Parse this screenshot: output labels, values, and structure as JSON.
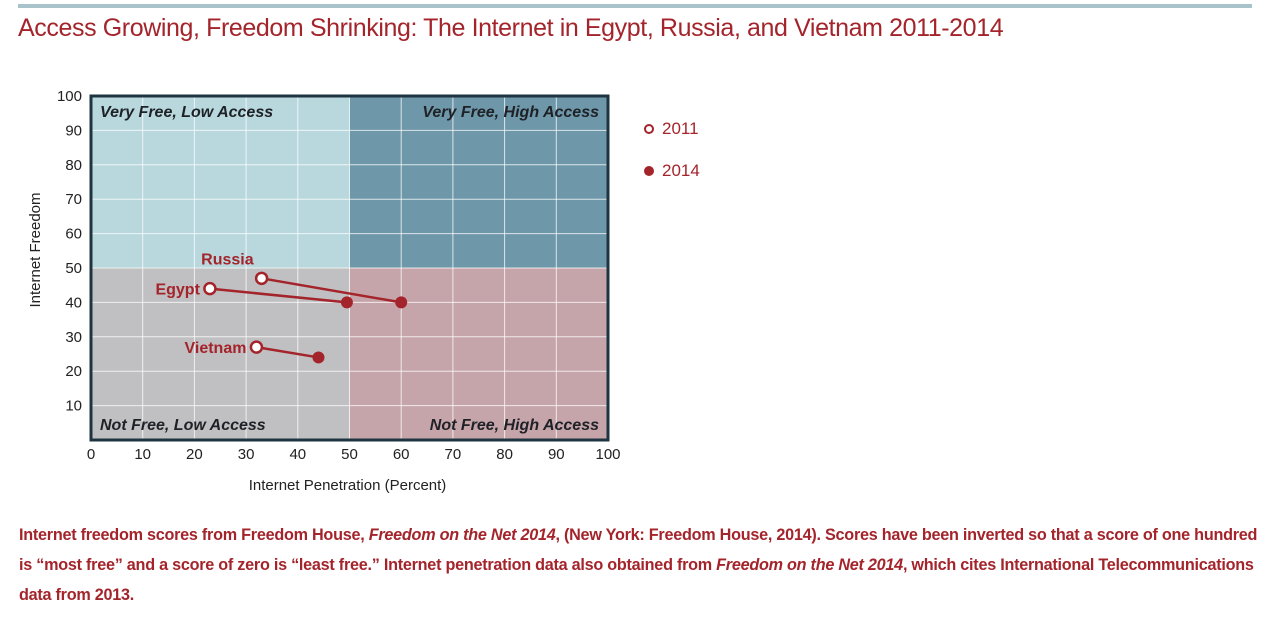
{
  "title": "Access Growing, Freedom Shrinking: The Internet in Egypt, Russia, and Vietnam 2011-2014",
  "colors": {
    "accent": "#a4242b",
    "quad_top_left": "#b8d8de",
    "quad_top_right": "#6e97aa",
    "quad_bottom_left": "#c0c0c2",
    "quad_bottom_right": "#c6a5aa",
    "frame": "#1e3440",
    "rule": "#a8c3ca"
  },
  "chart_data": {
    "type": "scatter",
    "xlabel": "Internet Penetration (Percent)",
    "ylabel": "Internet Freedom",
    "xlim": [
      0,
      100
    ],
    "ylim": [
      0,
      100
    ],
    "x_ticks": [
      "0",
      "10",
      "20",
      "30",
      "40",
      "50",
      "60",
      "70",
      "80",
      "90",
      "100"
    ],
    "y_ticks": [
      "10",
      "20",
      "30",
      "40",
      "50",
      "60",
      "70",
      "80",
      "90",
      "100"
    ],
    "grid": true,
    "quadrants": [
      {
        "label": "Very Free, Low Access",
        "x_range": [
          0,
          50
        ],
        "y_range": [
          50,
          100
        ]
      },
      {
        "label": "Very Free, High Access",
        "x_range": [
          50,
          100
        ],
        "y_range": [
          50,
          100
        ]
      },
      {
        "label": "Not Free, Low Access",
        "x_range": [
          0,
          50
        ],
        "y_range": [
          0,
          50
        ]
      },
      {
        "label": "Not Free, High Access",
        "x_range": [
          50,
          100
        ],
        "y_range": [
          0,
          50
        ]
      }
    ],
    "series": [
      {
        "name": "2011",
        "marker": "open-circle"
      },
      {
        "name": "2014",
        "marker": "filled-circle"
      }
    ],
    "points": [
      {
        "country": "Russia",
        "x2011": 33,
        "y2011": 47,
        "x2014": 60,
        "y2014": 40
      },
      {
        "country": "Egypt",
        "x2011": 23,
        "y2011": 44,
        "x2014": 49.5,
        "y2014": 40
      },
      {
        "country": "Vietnam",
        "x2011": 32,
        "y2011": 27,
        "x2014": 44,
        "y2014": 24
      }
    ],
    "legend_position": "right"
  },
  "footnote": {
    "p1": "Internet freedom scores from Freedom House, ",
    "i1": "Freedom on the Net 2014",
    "p2": ", (New York: Freedom House, 2014). Scores have been inverted so that a score of one hundred is “most free” and a score of zero is “least free.” Internet penetration data also obtained from ",
    "i2": "Freedom on the Net 2014",
    "p3": ", which cites International Telecommunications data from 2013."
  }
}
